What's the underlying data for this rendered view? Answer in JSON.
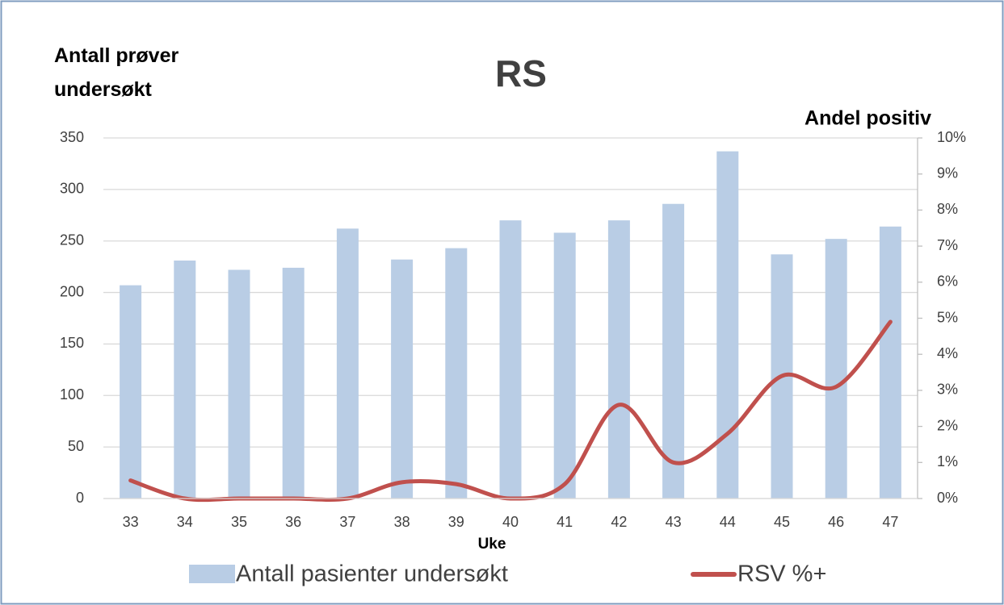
{
  "chart_data": {
    "type": "bar-line",
    "title": "RS",
    "y_label": "Antall prøver undersøkt",
    "y2_label": "Andel positiv",
    "x_label": "Uke",
    "categories": [
      "33",
      "34",
      "35",
      "36",
      "37",
      "38",
      "39",
      "40",
      "41",
      "42",
      "43",
      "44",
      "45",
      "46",
      "47"
    ],
    "series": [
      {
        "name": "Antall pasienter undersøkt",
        "type": "bar",
        "color": "#b9cde5",
        "values": [
          207,
          231,
          222,
          224,
          262,
          232,
          243,
          270,
          258,
          270,
          286,
          337,
          237,
          252,
          264
        ]
      },
      {
        "name": "RSV %+",
        "type": "line",
        "color": "#c0504d",
        "axis": "y2",
        "values": [
          0.5,
          0,
          0,
          0,
          0,
          0.45,
          0.4,
          0,
          0.4,
          2.6,
          1.0,
          1.8,
          3.4,
          3.1,
          4.9
        ]
      }
    ],
    "ylim": [
      0,
      350
    ],
    "yticks": [
      0,
      50,
      100,
      150,
      200,
      250,
      300,
      350
    ],
    "y2lim": [
      0,
      10
    ],
    "y2ticks": [
      {
        "value": 0,
        "label": "0%"
      },
      {
        "value": 1,
        "label": "1%"
      },
      {
        "value": 2,
        "label": "2%"
      },
      {
        "value": 3,
        "label": "3%"
      },
      {
        "value": 4,
        "label": "4%"
      },
      {
        "value": 5,
        "label": "5%"
      },
      {
        "value": 6,
        "label": "6%"
      },
      {
        "value": 7,
        "label": "7%"
      },
      {
        "value": 8,
        "label": "8%"
      },
      {
        "value": 9,
        "label": "9%"
      },
      {
        "value": 10,
        "label": "10%"
      }
    ],
    "grid": true,
    "legend": "bottom"
  }
}
